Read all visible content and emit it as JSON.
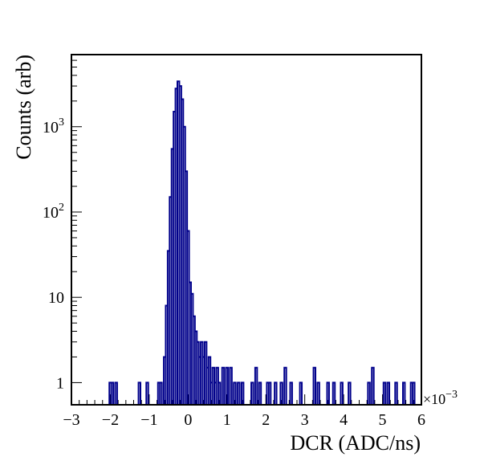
{
  "chart_data": {
    "type": "histogram",
    "ylabel": "Counts (arb)",
    "xlabel": "DCR (ADC/ns)",
    "x_multiplier_label": "×10",
    "x_multiplier_exp": "−3",
    "xlim": [
      -3,
      6
    ],
    "ylim": [
      0.55,
      7000
    ],
    "yscale": "log",
    "x_ticks": [
      -3,
      -2,
      -1,
      0,
      1,
      2,
      3,
      4,
      5,
      6
    ],
    "x_tick_labels": [
      "−3",
      "−2",
      "−1",
      "0",
      "1",
      "2",
      "3",
      "4",
      "5",
      "6"
    ],
    "y_ticks": [
      1,
      10,
      100,
      1000
    ],
    "y_tick_labels": [
      {
        "base": "1",
        "exp": ""
      },
      {
        "base": "10",
        "exp": ""
      },
      {
        "base": "10",
        "exp": "2"
      },
      {
        "base": "10",
        "exp": "3"
      }
    ],
    "series_color": "#00008B",
    "bins": [
      [
        -2.0,
        1
      ],
      [
        -1.95,
        1
      ],
      [
        -1.85,
        1
      ],
      [
        -1.25,
        1
      ],
      [
        -1.05,
        1
      ],
      [
        -0.75,
        1
      ],
      [
        -0.7,
        1
      ],
      [
        -0.6,
        2
      ],
      [
        -0.55,
        8
      ],
      [
        -0.5,
        35
      ],
      [
        -0.45,
        150
      ],
      [
        -0.4,
        550
      ],
      [
        -0.35,
        1500
      ],
      [
        -0.3,
        2800
      ],
      [
        -0.25,
        3400
      ],
      [
        -0.2,
        3000
      ],
      [
        -0.15,
        2100
      ],
      [
        -0.1,
        1000
      ],
      [
        -0.05,
        300
      ],
      [
        0.0,
        60
      ],
      [
        0.05,
        15
      ],
      [
        0.1,
        11
      ],
      [
        0.15,
        6
      ],
      [
        0.2,
        4
      ],
      [
        0.25,
        3
      ],
      [
        0.3,
        2
      ],
      [
        0.35,
        3
      ],
      [
        0.4,
        2
      ],
      [
        0.45,
        3
      ],
      [
        0.5,
        1.5
      ],
      [
        0.55,
        2
      ],
      [
        0.6,
        1
      ],
      [
        0.65,
        1.5
      ],
      [
        0.7,
        1
      ],
      [
        0.75,
        1.5
      ],
      [
        0.8,
        1
      ],
      [
        0.9,
        1.5
      ],
      [
        1.0,
        1.5
      ],
      [
        1.1,
        1.5
      ],
      [
        1.2,
        1
      ],
      [
        1.3,
        1
      ],
      [
        1.4,
        1
      ],
      [
        1.65,
        1
      ],
      [
        1.75,
        1.5
      ],
      [
        1.85,
        1
      ],
      [
        2.05,
        1
      ],
      [
        2.1,
        1
      ],
      [
        2.25,
        1
      ],
      [
        2.4,
        1
      ],
      [
        2.5,
        1.5
      ],
      [
        2.65,
        1
      ],
      [
        2.9,
        1
      ],
      [
        3.25,
        1.5
      ],
      [
        3.35,
        1
      ],
      [
        3.6,
        1
      ],
      [
        3.75,
        1
      ],
      [
        3.95,
        1
      ],
      [
        4.15,
        1
      ],
      [
        4.65,
        1
      ],
      [
        4.75,
        1.5
      ],
      [
        5.05,
        1
      ],
      [
        5.15,
        1
      ],
      [
        5.35,
        1
      ],
      [
        5.55,
        1
      ],
      [
        5.75,
        1
      ],
      [
        5.8,
        1
      ]
    ],
    "bin_width": 0.05
  }
}
